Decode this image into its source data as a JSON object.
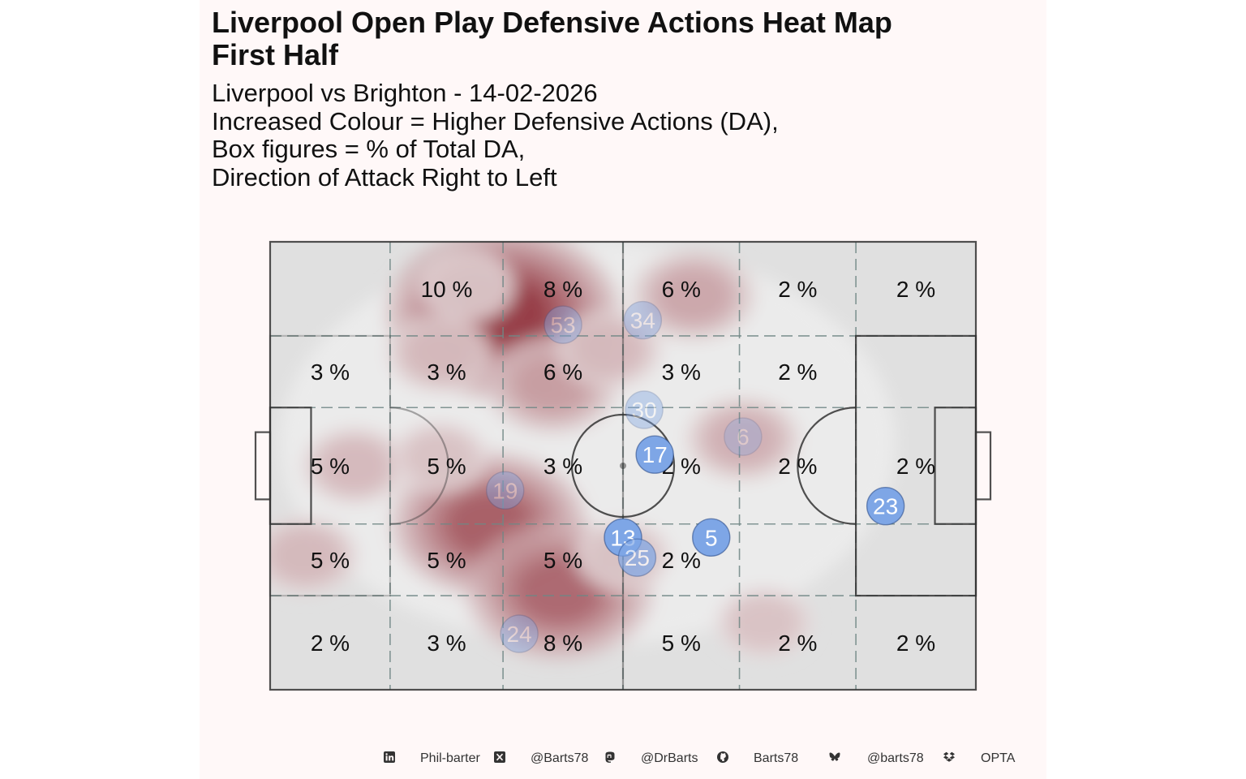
{
  "title_lines": [
    "Liverpool Open Play Defensive Actions Heat Map",
    "First Half"
  ],
  "subtitle_lines": [
    "Liverpool vs Brighton - 14-02-2026",
    "Increased Colour = Higher Defensive Actions (DA),",
    "Box figures = % of Total DA,",
    "Direction of Attack Right to Left"
  ],
  "footer": [
    {
      "icon": "linkedin-icon",
      "text": "Phil-barter"
    },
    {
      "icon": "x-twitter-icon",
      "text": "@Barts78"
    },
    {
      "icon": "mastodon-icon",
      "text": "@DrBarts"
    },
    {
      "icon": "github-icon",
      "text": "Barts78"
    },
    {
      "icon": "bluesky-icon",
      "text": "@barts78"
    },
    {
      "icon": "dropbox-icon",
      "text": "OPTA"
    }
  ],
  "colors": {
    "panel_background": "#fff8f8",
    "pitch_fill": "#e0e0e0",
    "pitch_lines": "#333333",
    "zone_lines": "#708785",
    "heat_low": "#efefef",
    "heat_high": "#8b2530",
    "player_marker": "#7ea6e6"
  },
  "chart_data": {
    "type": "heatmap",
    "pitch": {
      "x_range": [
        0,
        100
      ],
      "y_range": [
        0,
        100
      ]
    },
    "zone_x_bounds": [
      0,
      17,
      33,
      50,
      66.5,
      83,
      100
    ],
    "zone_y_bounds": [
      0,
      21,
      37,
      63,
      79,
      100
    ],
    "zone_percent_labels": [
      {
        "col": 1,
        "row": 5,
        "text": ""
      },
      {
        "col": 2,
        "row": 5,
        "text": "10 %"
      },
      {
        "col": 3,
        "row": 5,
        "text": "8 %"
      },
      {
        "col": 4,
        "row": 5,
        "text": "6 %"
      },
      {
        "col": 5,
        "row": 5,
        "text": "2 %"
      },
      {
        "col": 6,
        "row": 5,
        "text": "2 %"
      },
      {
        "col": 1,
        "row": 4,
        "text": "3 %"
      },
      {
        "col": 2,
        "row": 4,
        "text": "3 %"
      },
      {
        "col": 3,
        "row": 4,
        "text": "6 %"
      },
      {
        "col": 4,
        "row": 4,
        "text": "3 %"
      },
      {
        "col": 5,
        "row": 4,
        "text": "2 %"
      },
      {
        "col": 6,
        "row": 4,
        "text": ""
      },
      {
        "col": 1,
        "row": 3,
        "text": "5 %"
      },
      {
        "col": 2,
        "row": 3,
        "text": "5 %"
      },
      {
        "col": 3,
        "row": 3,
        "text": "3 %"
      },
      {
        "col": 4,
        "row": 3,
        "text": "2 %"
      },
      {
        "col": 5,
        "row": 3,
        "text": "2 %"
      },
      {
        "col": 6,
        "row": 3,
        "text": "2 %"
      },
      {
        "col": 1,
        "row": 2,
        "text": "5 %"
      },
      {
        "col": 2,
        "row": 2,
        "text": "5 %"
      },
      {
        "col": 3,
        "row": 2,
        "text": "5 %"
      },
      {
        "col": 4,
        "row": 2,
        "text": "2 %"
      },
      {
        "col": 5,
        "row": 2,
        "text": ""
      },
      {
        "col": 6,
        "row": 2,
        "text": ""
      },
      {
        "col": 1,
        "row": 1,
        "text": "2 %"
      },
      {
        "col": 2,
        "row": 1,
        "text": "3 %"
      },
      {
        "col": 3,
        "row": 1,
        "text": "8 %"
      },
      {
        "col": 4,
        "row": 1,
        "text": "5 %"
      },
      {
        "col": 5,
        "row": 1,
        "text": "2 %"
      },
      {
        "col": 6,
        "row": 1,
        "text": "2 %"
      }
    ],
    "density_peaks": [
      {
        "x": 33,
        "y": 84,
        "weight": 1.0
      },
      {
        "x": 31,
        "y": 37,
        "weight": 0.8
      },
      {
        "x": 41,
        "y": 22,
        "weight": 0.75
      },
      {
        "x": 40,
        "y": 68,
        "weight": 0.45
      },
      {
        "x": 60,
        "y": 88,
        "weight": 0.4
      },
      {
        "x": 67,
        "y": 56,
        "weight": 0.35
      },
      {
        "x": 12,
        "y": 50,
        "weight": 0.3
      },
      {
        "x": 5,
        "y": 30,
        "weight": 0.3
      },
      {
        "x": 24,
        "y": 75,
        "weight": 0.3
      },
      {
        "x": 48,
        "y": 76,
        "weight": 0.3
      },
      {
        "x": 70,
        "y": 15,
        "weight": 0.25
      },
      {
        "x": 50,
        "y": 30,
        "weight": 0.25
      },
      {
        "x": 28,
        "y": 90,
        "weight": 0.25
      },
      {
        "x": 24,
        "y": 52,
        "weight": 0.25
      }
    ],
    "players": [
      {
        "number": "53",
        "x": 41.5,
        "y": 81.5,
        "opacity": 0.4
      },
      {
        "number": "34",
        "x": 52.8,
        "y": 82.5,
        "opacity": 0.4
      },
      {
        "number": "30",
        "x": 53.0,
        "y": 62.5,
        "opacity": 0.4
      },
      {
        "number": "6",
        "x": 67.0,
        "y": 56.5,
        "opacity": 0.3
      },
      {
        "number": "17",
        "x": 54.5,
        "y": 52.5,
        "opacity": 1.0
      },
      {
        "number": "19",
        "x": 33.3,
        "y": 44.5,
        "opacity": 0.4
      },
      {
        "number": "23",
        "x": 87.2,
        "y": 41.0,
        "opacity": 1.0
      },
      {
        "number": "13",
        "x": 50.0,
        "y": 34.0,
        "opacity": 1.0
      },
      {
        "number": "5",
        "x": 62.5,
        "y": 34.0,
        "opacity": 1.0
      },
      {
        "number": "25",
        "x": 52.0,
        "y": 29.5,
        "opacity": 0.7
      },
      {
        "number": "24",
        "x": 35.3,
        "y": 12.5,
        "opacity": 0.4
      }
    ]
  }
}
